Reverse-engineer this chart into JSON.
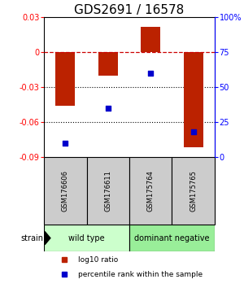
{
  "title": "GDS2691 / 16578",
  "bar_values": [
    -0.046,
    -0.02,
    0.022,
    -0.082
  ],
  "percentile_values": [
    10,
    35,
    60,
    18
  ],
  "categories": [
    "GSM176606",
    "GSM176611",
    "GSM175764",
    "GSM175765"
  ],
  "ylim_left": [
    -0.09,
    0.03
  ],
  "ylim_right": [
    0,
    100
  ],
  "yticks_left": [
    -0.09,
    -0.06,
    -0.03,
    0,
    0.03
  ],
  "yticks_right": [
    0,
    25,
    50,
    75,
    100
  ],
  "ytick_labels_right": [
    "0",
    "25",
    "50",
    "75",
    "100%"
  ],
  "bar_color": "#bb2200",
  "square_color": "#0000cc",
  "group_labels": [
    "wild type",
    "dominant negative"
  ],
  "group_ranges": [
    [
      0,
      2
    ],
    [
      2,
      4
    ]
  ],
  "group_colors": [
    "#ccffcc",
    "#99ee99"
  ],
  "strain_label": "strain",
  "legend_items": [
    {
      "color": "#bb2200",
      "label": "log10 ratio"
    },
    {
      "color": "#0000cc",
      "label": "percentile rank within the sample"
    }
  ],
  "sample_label_bg": "#cccccc",
  "title_fontsize": 11,
  "tick_fontsize": 7,
  "label_fontsize": 7
}
